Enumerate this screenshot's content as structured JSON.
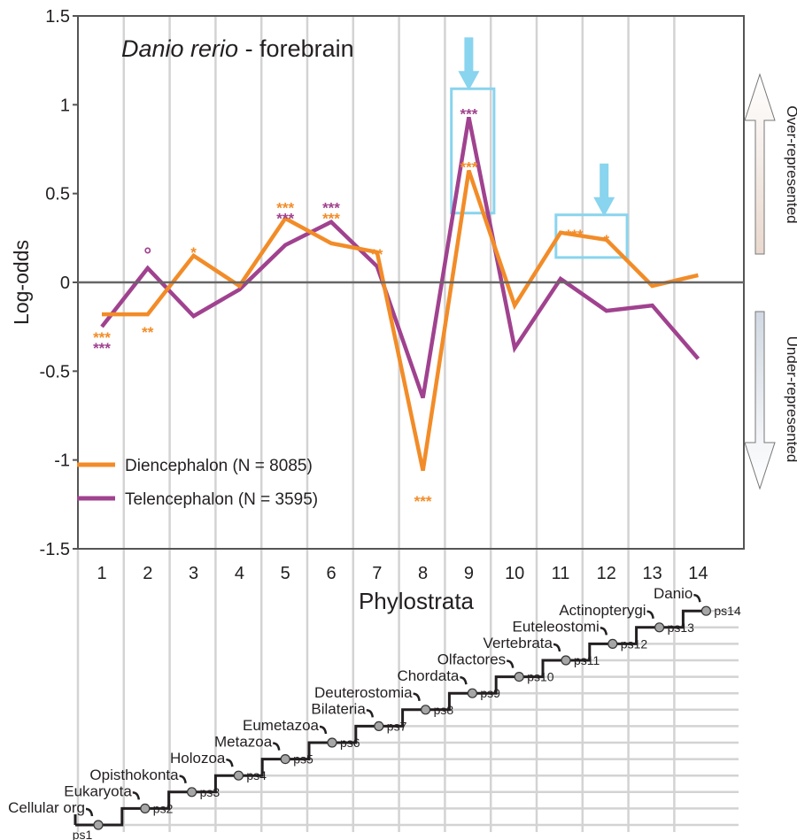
{
  "chart_data": {
    "type": "line",
    "title_italic": "Danio rerio",
    "title_rest": " - forebrain",
    "xlabel": "Phylostrata",
    "ylabel": "Log-odds",
    "x": [
      1,
      2,
      3,
      4,
      5,
      6,
      7,
      8,
      9,
      10,
      11,
      12,
      13,
      14
    ],
    "ylim": [
      -1.5,
      1.5
    ],
    "yticks": [
      "1.5",
      "1",
      "0.5",
      "0",
      "-0.5",
      "-1",
      "-1.5"
    ],
    "series": [
      {
        "name": "Diencephalon (N = 8085)",
        "color": "#F28C28",
        "values": [
          -0.18,
          -0.18,
          0.15,
          -0.02,
          0.36,
          0.22,
          0.17,
          -1.06,
          0.63,
          -0.13,
          0.28,
          0.24,
          -0.02,
          0.04
        ]
      },
      {
        "name": "Telencephalon (N = 3595)",
        "color": "#A0428F",
        "values": [
          -0.25,
          0.08,
          -0.19,
          -0.04,
          0.21,
          0.34,
          0.09,
          -0.65,
          0.93,
          -0.37,
          0.02,
          -0.16,
          -0.13,
          -0.43
        ]
      }
    ],
    "significance": [
      {
        "x": 1,
        "text": "***",
        "color": "#F28C28",
        "y": -0.28
      },
      {
        "x": 1,
        "text": "***",
        "color": "#A0428F",
        "y": -0.34
      },
      {
        "x": 2,
        "text": "°",
        "color": "#A0428F",
        "y": 0.15
      },
      {
        "x": 2,
        "text": "**",
        "color": "#F28C28",
        "y": -0.25
      },
      {
        "x": 3,
        "text": "*",
        "color": "#F28C28",
        "y": 0.2
      },
      {
        "x": 5,
        "text": "***",
        "color": "#F28C28",
        "y": 0.45
      },
      {
        "x": 5,
        "text": "***",
        "color": "#A0428F",
        "y": 0.39
      },
      {
        "x": 6,
        "text": "***",
        "color": "#A0428F",
        "y": 0.45
      },
      {
        "x": 6,
        "text": "***",
        "color": "#F28C28",
        "y": 0.39
      },
      {
        "x": 7,
        "text": "**",
        "color": "#F28C28",
        "y": 0.19
      },
      {
        "x": 8,
        "text": "***",
        "color": "#F28C28",
        "y": -1.2
      },
      {
        "x": 9,
        "text": "***",
        "color": "#A0428F",
        "y": 0.98
      },
      {
        "x": 9,
        "text": "***",
        "color": "#F28C28",
        "y": 0.68
      },
      {
        "x": 11.3,
        "text": "***",
        "color": "#F28C28",
        "y": 0.3
      },
      {
        "x": 12,
        "text": "*",
        "color": "#F28C28",
        "y": 0.27
      }
    ],
    "highlight_boxes": [
      {
        "x0": 8.62,
        "x1": 9.55,
        "y0": 0.39,
        "y1": 1.09
      },
      {
        "x0": 10.9,
        "x1": 12.45,
        "y0": 0.14,
        "y1": 0.38
      }
    ],
    "highlight_arrows": [
      9,
      11.95
    ],
    "highlight_color": "#89D4EE",
    "right_labels": {
      "over": "Over-represented",
      "under": "Under-represented"
    },
    "phylogeny": [
      {
        "name": "Cellular org",
        "ps": "ps1"
      },
      {
        "name": "Eukaryota",
        "ps": "ps2"
      },
      {
        "name": "Opisthokonta",
        "ps": "ps3"
      },
      {
        "name": "Holozoa",
        "ps": "ps4"
      },
      {
        "name": "Metazoa",
        "ps": "ps5"
      },
      {
        "name": "Eumetazoa",
        "ps": "ps6"
      },
      {
        "name": "Bilateria",
        "ps": "ps7"
      },
      {
        "name": "Deuterostomia",
        "ps": "ps8"
      },
      {
        "name": "Chordata",
        "ps": "ps9"
      },
      {
        "name": "Olfactores",
        "ps": "ps10"
      },
      {
        "name": "Vertebrata",
        "ps": "ps11"
      },
      {
        "name": "Euteleostomi",
        "ps": "ps12"
      },
      {
        "name": "Actinopterygi",
        "ps": "ps13"
      },
      {
        "name": "Danio",
        "ps": "ps14"
      }
    ]
  }
}
